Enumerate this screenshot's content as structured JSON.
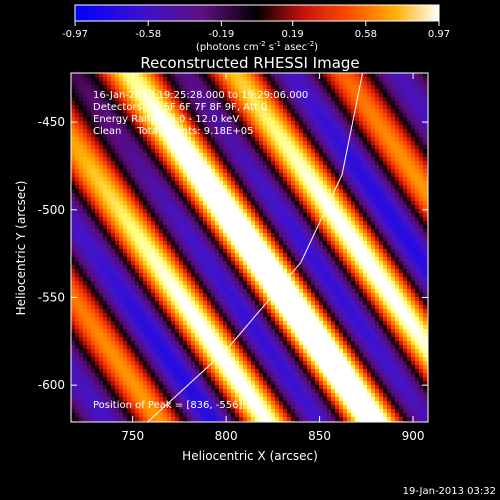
{
  "chart_data": {
    "type": "heatmap",
    "title": "Reconstructed RHESSI Image",
    "colorbar": {
      "ticks": [
        "-0.97",
        "-0.58",
        "-0.19",
        "0.19",
        "0.58",
        "0.97"
      ],
      "unit_label": "(photons cm",
      "unit_exp1": "-2",
      "unit_mid": " s",
      "unit_exp2": "-1",
      "unit_mid2": " asec",
      "unit_exp3": "-2",
      "unit_end": ")",
      "range": [
        -0.97,
        0.97
      ]
    },
    "xlabel": "Heliocentric X (arcsec)",
    "ylabel": "Heliocentric Y (arcsec)",
    "xlim": [
      717,
      908
    ],
    "ylim": [
      -621,
      -422
    ],
    "xticks": [
      750,
      800,
      850,
      900
    ],
    "yticks": [
      -450,
      -500,
      -550,
      -600
    ],
    "annotations": {
      "time_range": "16-Jan-2013 19:25:28.000 to 19:29:06.000",
      "detectors": "Detectors: 3F 5F 6F 7F 8F 9F, Att 0",
      "energy": "Energy Range: 6.0 - 12.0 keV",
      "clean": "Clean     Total counts: 9.18E+05",
      "peak": "Position of Peak = [836, -556]"
    },
    "limb": [
      [
        758,
        -621
      ],
      [
        800,
        -580
      ],
      [
        840,
        -530
      ],
      [
        862,
        -480
      ],
      [
        873,
        -422
      ]
    ],
    "stripe_angle_deg": 55,
    "peak": [
      836,
      -556
    ]
  },
  "footer_date": "19-Jan-2013 03:32",
  "colors": {
    "c0": "#0000ff",
    "c1": "#4a00c0",
    "c2": "#000000",
    "c3": "#a01010",
    "c4": "#ff3000",
    "c5": "#ff9a00",
    "c6": "#ffff80",
    "c7": "#ffffff"
  }
}
